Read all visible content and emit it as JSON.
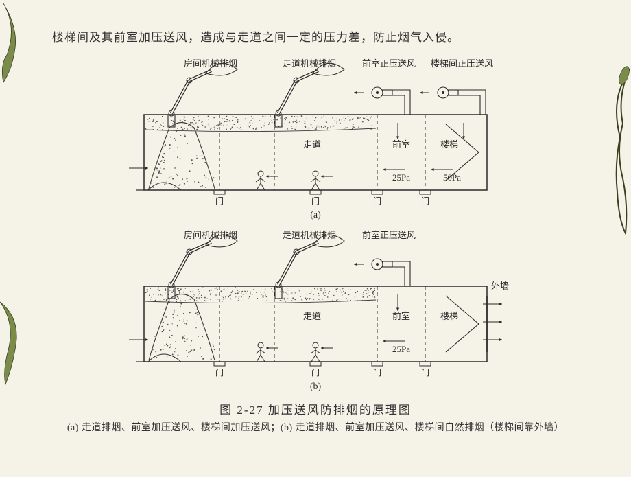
{
  "intro_text": "楼梯间及其前室加压送风，造成与走道之间一定的压力差，防止烟气入侵。",
  "figure_caption": "图 2-27  加压送风防排烟的原理图",
  "figure_subcaption": "(a) 走道排烟、前室加压送风、楼梯间加压送风；(b)  走道排烟、前室加压送风、楼梯间自然排烟（楼梯间靠外墙）",
  "palette": {
    "bg": "#f5f3e8",
    "ink": "#2a2a2a",
    "smoke_dot": "#555555",
    "smoke_edge": "#3a3a3a",
    "decor_green": "#7a8b4a",
    "decor_dark": "#3a4020"
  },
  "shared": {
    "room_labels": {
      "corridor": "走道",
      "anteroom": "前室",
      "stair": "楼梯",
      "door": "门"
    },
    "fan_labels": {
      "room_exhaust": "房间机械排烟",
      "corridor_exhaust": "走道机械排烟",
      "anteroom_supply": "前室正压送风",
      "stair_supply": "楼梯间正压送风",
      "outer_wall": "外墙"
    },
    "pressures": {
      "p25": "25Pa",
      "p50": "50Pa"
    },
    "label_a": "(a)",
    "label_b": "(b)",
    "label_fontsize": 13,
    "pressure_fontsize": 13,
    "stroke_width": 1.2
  },
  "diagram_a": {
    "has_stair_fan": true,
    "has_outer_wall_vent": false,
    "show_p50": true
  },
  "diagram_b": {
    "has_stair_fan": false,
    "has_outer_wall_vent": true,
    "show_p50": false
  }
}
